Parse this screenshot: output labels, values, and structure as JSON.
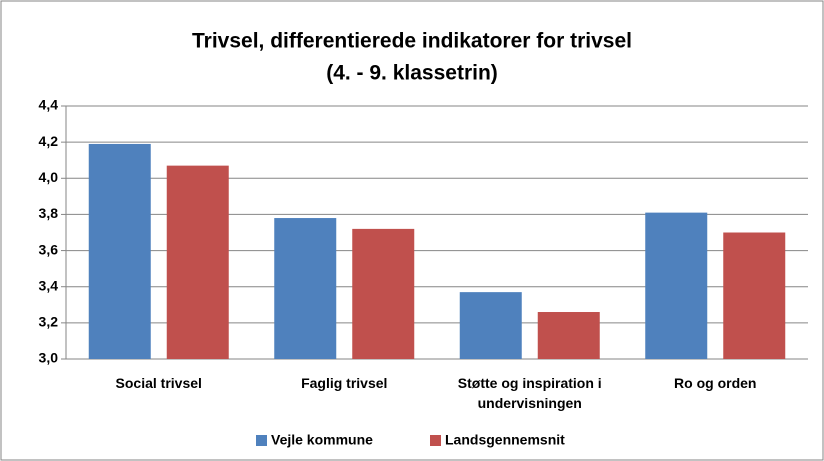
{
  "chart_data": {
    "type": "bar",
    "title": [
      "Trivsel, differentierede indikatorer for trivsel",
      "(4. - 9. klassetrin)"
    ],
    "categories": [
      "Social trivsel",
      "Faglig trivsel",
      "Støtte og inspiration i undervisningen",
      "Ro og orden"
    ],
    "series": [
      {
        "name": "Vejle kommune",
        "color": "#4f81bd",
        "values": [
          4.19,
          3.78,
          3.37,
          3.81
        ]
      },
      {
        "name": "Landsgennemsnit",
        "color": "#c0504d",
        "values": [
          4.07,
          3.72,
          3.26,
          3.7
        ]
      }
    ],
    "ylim": [
      3.0,
      4.4
    ],
    "yticks": [
      {
        "value": 3.0,
        "label": "3,0"
      },
      {
        "value": 3.2,
        "label": "3,2"
      },
      {
        "value": 3.4,
        "label": "3,4"
      },
      {
        "value": 3.6,
        "label": "3,6"
      },
      {
        "value": 3.8,
        "label": "3,8"
      },
      {
        "value": 4.0,
        "label": "4,0"
      },
      {
        "value": 4.2,
        "label": "4,2"
      },
      {
        "value": 4.4,
        "label": "4,4"
      }
    ],
    "grid": true,
    "legend": "bottom"
  }
}
